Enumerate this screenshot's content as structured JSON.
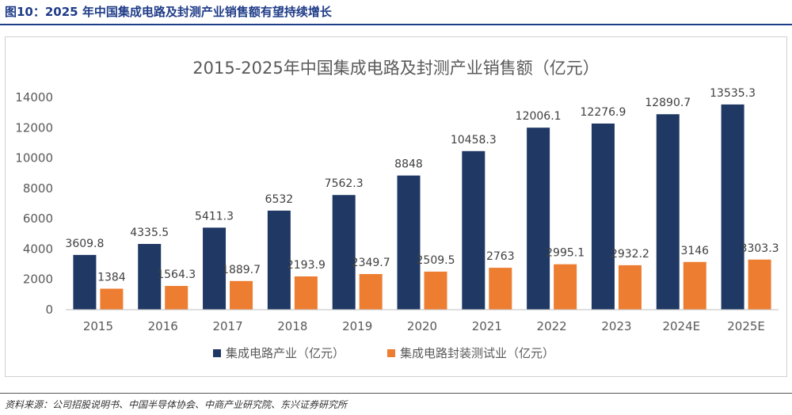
{
  "figure_title": "图10：2025 年中国集成电路及封测产业销售额有望持续增长",
  "source": "资料来源：公司招股说明书、中国半导体协会、中商产业研究院、东兴证券研究所",
  "colors": {
    "series1": "#1f3864",
    "series2": "#ed7d31",
    "heading": "#1f3c88"
  },
  "chart_data": {
    "type": "bar",
    "title": "2015-2025年中国集成电路及封测产业销售额（亿元）",
    "categories": [
      "2015",
      "2016",
      "2017",
      "2018",
      "2019",
      "2020",
      "2021",
      "2022",
      "2023",
      "2024E",
      "2025E"
    ],
    "series": [
      {
        "name": "集成电路产业（亿元）",
        "values": [
          3609.8,
          4335.5,
          5411.3,
          6532,
          7562.3,
          8848,
          10458.3,
          12006.1,
          12276.9,
          12890.7,
          13535.3
        ],
        "labels": [
          "3609.8",
          "4335.5",
          "5411.3",
          "6532",
          "7562.3",
          "8848",
          "10458.3",
          "12006.1",
          "12276.9",
          "12890.7",
          "13535.3"
        ]
      },
      {
        "name": "集成电路封装测试业（亿元）",
        "values": [
          1384,
          1564.3,
          1889.7,
          2193.9,
          2349.7,
          2509.5,
          2763,
          2995.1,
          2932.2,
          3146,
          3303.3
        ],
        "labels": [
          "1384",
          "1564.3",
          "1889.7",
          "2193.9",
          "2349.7",
          "2509.5",
          "2763",
          "2995.1",
          "2932.2",
          "3146",
          "3303.3"
        ]
      }
    ],
    "ylim": [
      0,
      14000
    ],
    "yticks": [
      "0",
      "2000",
      "4000",
      "6000",
      "8000",
      "10000",
      "12000",
      "14000"
    ],
    "grid": false,
    "legend": "bottom"
  }
}
